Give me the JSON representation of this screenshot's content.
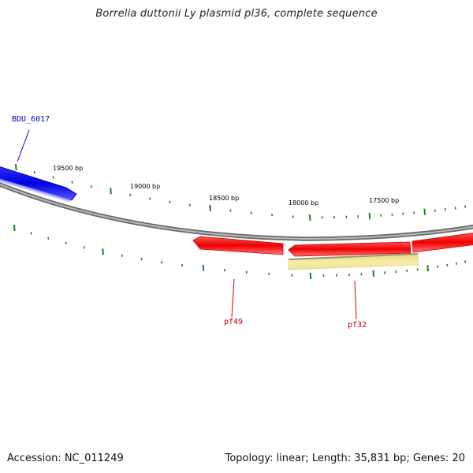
{
  "title": "Borrelia duttonii Ly plasmid pl36, complete sequence",
  "footer": {
    "accession": "Accession: NC_011249",
    "summary": "Topology: linear; Length: 35,831 bp; Genes: 20"
  },
  "ticks": {
    "labels": [
      "19500 bp",
      "19000 bp",
      "18500 bp",
      "18000 bp",
      "17500 bp"
    ],
    "color": "#1f7f1f"
  },
  "genes": [
    {
      "id": "gene-bdu6017",
      "label": "BDU_6017",
      "color": "#1a1aee",
      "label_color": "#0000cc"
    },
    {
      "id": "gene-pf49",
      "label": "pf49",
      "color": "#ee1111",
      "label_color": "#cc0000"
    },
    {
      "id": "gene-pf32",
      "label": "pf32",
      "color": "#ee1111",
      "label_color": "#cc0000"
    },
    {
      "id": "gene-right",
      "label": "",
      "color": "#ee1111"
    }
  ],
  "features": [
    {
      "id": "feature-pf32-domain",
      "color": "#f2e8a0"
    }
  ],
  "backbone_color": "#888888"
}
